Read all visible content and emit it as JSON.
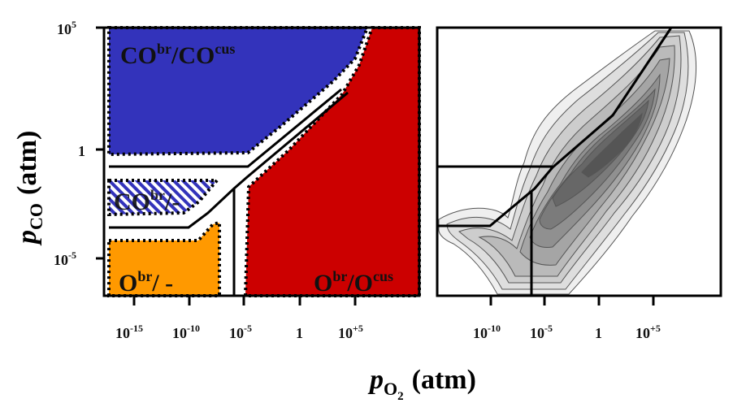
{
  "x_axis": {
    "symbol": "p",
    "subscript": "O",
    "subsub": "2",
    "unit": "(atm)",
    "left_ticks": [
      {
        "base": "10",
        "exp": "-15"
      },
      {
        "base": "10",
        "exp": "-10"
      },
      {
        "base": "10",
        "exp": "-5"
      },
      {
        "base": "1",
        "exp": ""
      },
      {
        "base": "10",
        "exp": "+5"
      }
    ],
    "right_ticks": [
      {
        "base": "10",
        "exp": "-10"
      },
      {
        "base": "10",
        "exp": "-5"
      },
      {
        "base": "1",
        "exp": ""
      },
      {
        "base": "10",
        "exp": "+5"
      }
    ]
  },
  "y_axis": {
    "symbol": "p",
    "subscript": "CO",
    "unit": "(atm)",
    "ticks": [
      {
        "base": "10",
        "exp": "5"
      },
      {
        "base": "1",
        "exp": ""
      },
      {
        "base": "10",
        "exp": "-5"
      }
    ]
  },
  "regions": {
    "co_co": {
      "main": "CO",
      "sup1": "br",
      "mid": "/CO",
      "sup2": "cus"
    },
    "co_dash": {
      "main": "CO",
      "sup1": "br",
      "mid": "/-",
      "sup2": ""
    },
    "o_dash": {
      "main": "O",
      "sup1": "br",
      "mid": "/ -",
      "sup2": ""
    },
    "o_o": {
      "main": "O",
      "sup1": "br",
      "mid": "/O",
      "sup2": "cus"
    }
  },
  "colors": {
    "co_co": "#3333bb",
    "co_dash_stripe": "#3333bb",
    "o_dash": "#ff9900",
    "o_o": "#cc0000"
  }
}
